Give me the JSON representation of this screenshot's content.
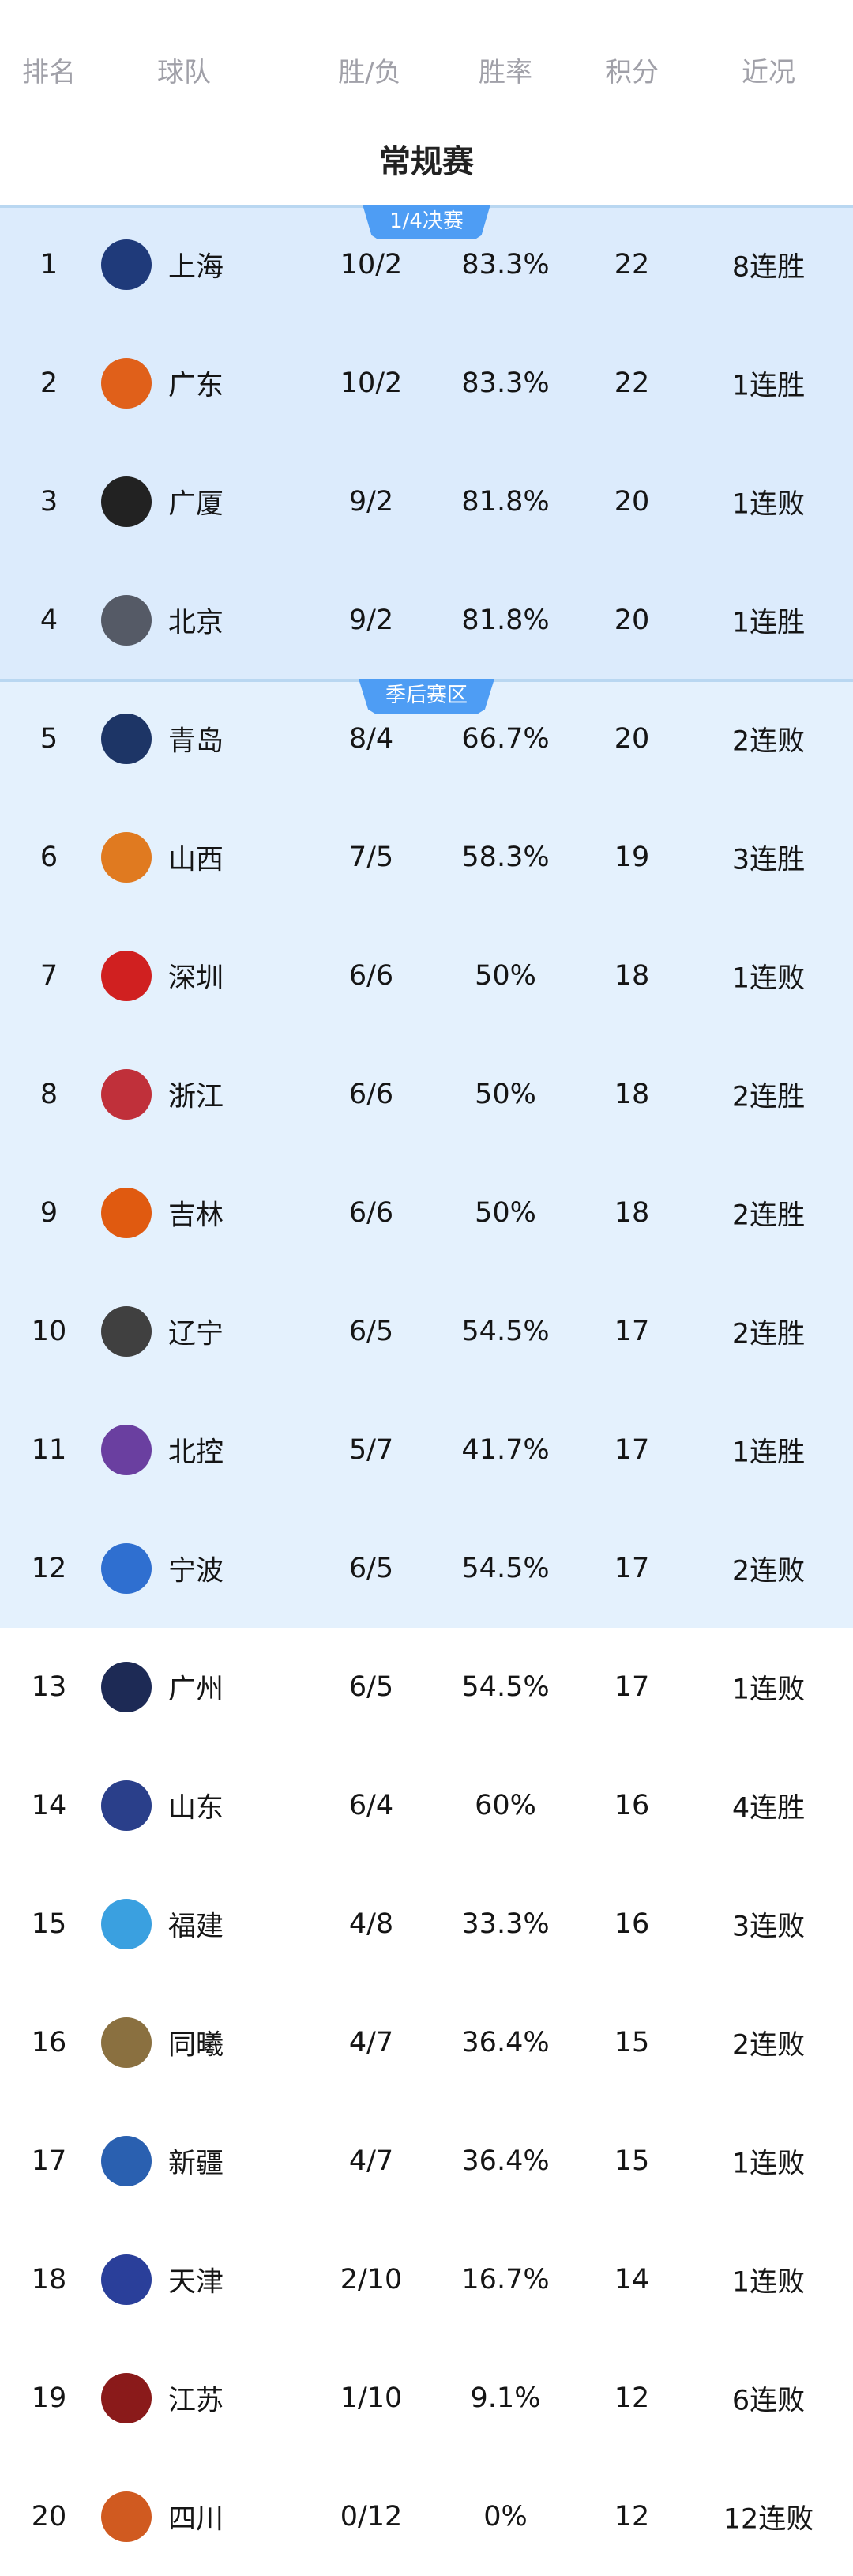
{
  "header": {
    "columns": [
      "排名",
      "球队",
      "胜/负",
      "胜率",
      "积分",
      "近况"
    ]
  },
  "section_title": "常规赛",
  "zones": [
    {
      "label": "1/4决赛",
      "color": "#dcebfc"
    },
    {
      "label": "季后赛区",
      "color": "#e4f1fd"
    }
  ],
  "accent": "#4e9df4",
  "teams": [
    {
      "rank": "1",
      "name": "上海",
      "wl": "10/2",
      "pct": "83.3%",
      "pts": "22",
      "recent": "8连胜",
      "logo_color": "#1f3a7a"
    },
    {
      "rank": "2",
      "name": "广东",
      "wl": "10/2",
      "pct": "83.3%",
      "pts": "22",
      "recent": "1连胜",
      "logo_color": "#e0601a"
    },
    {
      "rank": "3",
      "name": "广厦",
      "wl": "9/2",
      "pct": "81.8%",
      "pts": "20",
      "recent": "1连败",
      "logo_color": "#222222"
    },
    {
      "rank": "4",
      "name": "北京",
      "wl": "9/2",
      "pct": "81.8%",
      "pts": "20",
      "recent": "1连胜",
      "logo_color": "#555a66"
    },
    {
      "rank": "5",
      "name": "青岛",
      "wl": "8/4",
      "pct": "66.7%",
      "pts": "20",
      "recent": "2连败",
      "logo_color": "#1d3566"
    },
    {
      "rank": "6",
      "name": "山西",
      "wl": "7/5",
      "pct": "58.3%",
      "pts": "19",
      "recent": "3连胜",
      "logo_color": "#e07a20"
    },
    {
      "rank": "7",
      "name": "深圳",
      "wl": "6/6",
      "pct": "50%",
      "pts": "18",
      "recent": "1连败",
      "logo_color": "#d02020"
    },
    {
      "rank": "8",
      "name": "浙江",
      "wl": "6/6",
      "pct": "50%",
      "pts": "18",
      "recent": "2连胜",
      "logo_color": "#c0303a"
    },
    {
      "rank": "9",
      "name": "吉林",
      "wl": "6/6",
      "pct": "50%",
      "pts": "18",
      "recent": "2连胜",
      "logo_color": "#e05a10"
    },
    {
      "rank": "10",
      "name": "辽宁",
      "wl": "6/5",
      "pct": "54.5%",
      "pts": "17",
      "recent": "2连胜",
      "logo_color": "#404040"
    },
    {
      "rank": "11",
      "name": "北控",
      "wl": "5/7",
      "pct": "41.7%",
      "pts": "17",
      "recent": "1连胜",
      "logo_color": "#6a3fa0"
    },
    {
      "rank": "12",
      "name": "宁波",
      "wl": "6/5",
      "pct": "54.5%",
      "pts": "17",
      "recent": "2连败",
      "logo_color": "#2f6fd0"
    },
    {
      "rank": "13",
      "name": "广州",
      "wl": "6/5",
      "pct": "54.5%",
      "pts": "17",
      "recent": "1连败",
      "logo_color": "#1d2a55"
    },
    {
      "rank": "14",
      "name": "山东",
      "wl": "6/4",
      "pct": "60%",
      "pts": "16",
      "recent": "4连胜",
      "logo_color": "#2a3f8a"
    },
    {
      "rank": "15",
      "name": "福建",
      "wl": "4/8",
      "pct": "33.3%",
      "pts": "16",
      "recent": "3连败",
      "logo_color": "#3aa0e0"
    },
    {
      "rank": "16",
      "name": "同曦",
      "wl": "4/7",
      "pct": "36.4%",
      "pts": "15",
      "recent": "2连败",
      "logo_color": "#8a7040"
    },
    {
      "rank": "17",
      "name": "新疆",
      "wl": "4/7",
      "pct": "36.4%",
      "pts": "15",
      "recent": "1连败",
      "logo_color": "#2a60b0"
    },
    {
      "rank": "18",
      "name": "天津",
      "wl": "2/10",
      "pct": "16.7%",
      "pts": "14",
      "recent": "1连败",
      "logo_color": "#2a3f9a"
    },
    {
      "rank": "19",
      "name": "江苏",
      "wl": "1/10",
      "pct": "9.1%",
      "pts": "12",
      "recent": "6连败",
      "logo_color": "#8a1a1a"
    },
    {
      "rank": "20",
      "name": "四川",
      "wl": "0/12",
      "pct": "0%",
      "pts": "12",
      "recent": "12连败",
      "logo_color": "#d05a20"
    }
  ]
}
